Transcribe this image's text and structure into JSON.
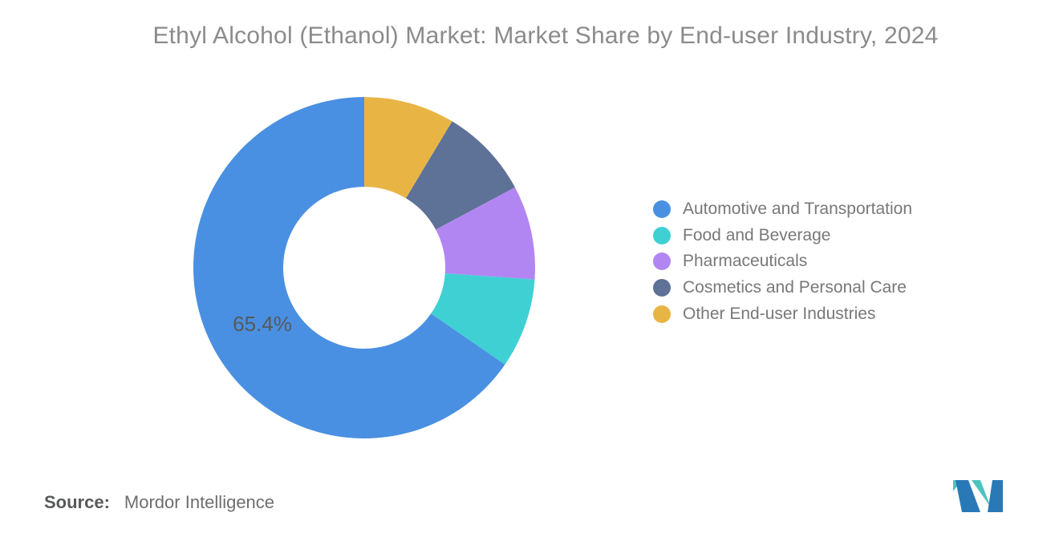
{
  "title": "Ethyl Alcohol (Ethanol) Market: Market Share by End-user Industry, 2024",
  "chart_data": {
    "type": "pie",
    "subtype": "donut",
    "title": "Ethyl Alcohol (Ethanol) Market: Market Share by End-user Industry, 2024",
    "start_angle_deg": 0,
    "draw_direction": "legend order counterclockwise from top (reverse order clockwise)",
    "inner_radius_ratio": 0.475,
    "legend_position": "right",
    "slices": [
      {
        "label": "Automotive and Transportation",
        "value": 65.4,
        "color": "#4A90E2",
        "data_label": "65.4%"
      },
      {
        "label": "Food and Beverage",
        "value": 8.5,
        "color": "#3FD0D4",
        "data_label": ""
      },
      {
        "label": "Pharmaceuticals",
        "value": 8.9,
        "color": "#B286F2",
        "data_label": ""
      },
      {
        "label": "Cosmetics and Personal Care",
        "value": 8.6,
        "color": "#5E7196",
        "data_label": ""
      },
      {
        "label": "Other End-user Industries",
        "value": 8.6,
        "color": "#E8B545",
        "data_label": ""
      }
    ]
  },
  "source": {
    "label": "Source:",
    "text": "Mordor Intelligence"
  },
  "logo": {
    "name": "mordor-intelligence-logo",
    "teal": "#4CC4BE",
    "blue": "#2A79B7"
  }
}
